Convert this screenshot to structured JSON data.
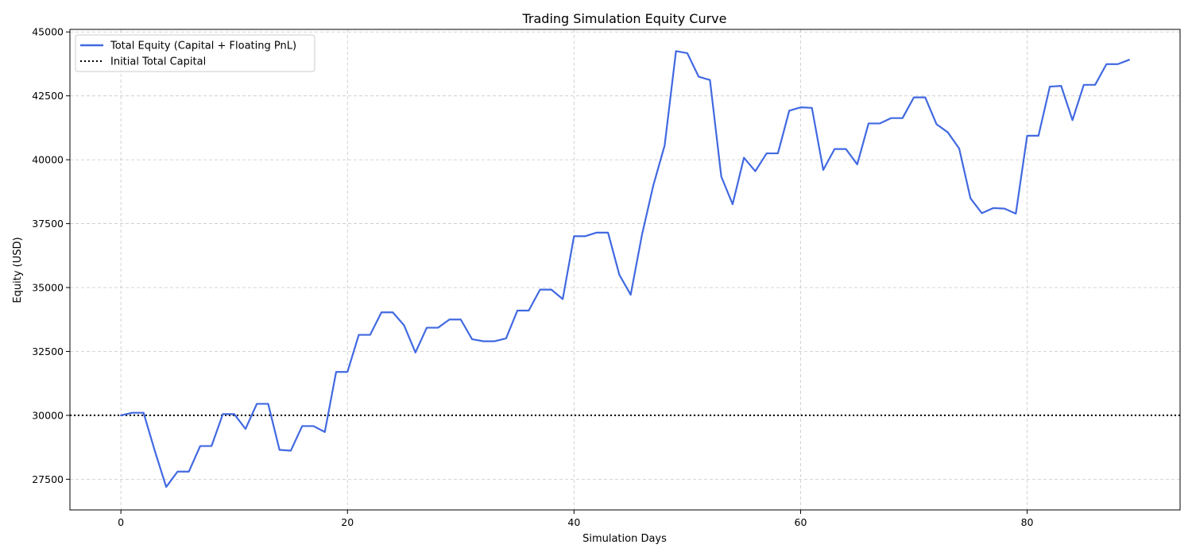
{
  "chart_data": {
    "type": "line",
    "title": "Trading Simulation Equity Curve",
    "xlabel": "Simulation Days",
    "ylabel": "Equity (USD)",
    "xlim": [
      -4.5,
      93.5
    ],
    "ylim": [
      26300,
      45100
    ],
    "xticks": [
      0,
      20,
      40,
      60,
      80
    ],
    "yticks": [
      27500,
      30000,
      32500,
      35000,
      37500,
      40000,
      42500,
      45000
    ],
    "grid": true,
    "legend_position": "top-left",
    "series": [
      {
        "name": "Total Equity (Capital + Floating PnL)",
        "color": "#4169E1",
        "style": "solid",
        "x": [
          0,
          1,
          2,
          3,
          4,
          5,
          6,
          7,
          8,
          9,
          10,
          11,
          12,
          13,
          14,
          15,
          16,
          17,
          18,
          19,
          20,
          21,
          22,
          23,
          24,
          25,
          26,
          27,
          28,
          29,
          30,
          31,
          32,
          33,
          34,
          35,
          36,
          37,
          38,
          39,
          40,
          41,
          42,
          43,
          44,
          45,
          46,
          47,
          48,
          49,
          50,
          51,
          52,
          53,
          54,
          55,
          56,
          57,
          58,
          59,
          60,
          61,
          62,
          63,
          64,
          65,
          66,
          67,
          68,
          69,
          70,
          71,
          72,
          73,
          74,
          75,
          76,
          77,
          78,
          79,
          80,
          81,
          82,
          83,
          84,
          85,
          86,
          87,
          88,
          89
        ],
        "values": [
          30000,
          30100,
          30100,
          28600,
          27200,
          27800,
          27800,
          28800,
          28800,
          30050,
          30050,
          29470,
          30450,
          30450,
          28650,
          28620,
          29580,
          29580,
          29350,
          31700,
          31700,
          33150,
          33150,
          34030,
          34030,
          33520,
          32460,
          33430,
          33430,
          33750,
          33750,
          32980,
          32900,
          32900,
          33010,
          34100,
          34100,
          34920,
          34920,
          34550,
          37010,
          37010,
          37150,
          37150,
          35500,
          34720,
          37070,
          39000,
          40560,
          44250,
          44170,
          43250,
          43120,
          39340,
          38260,
          40080,
          39550,
          40250,
          40250,
          41920,
          42050,
          42030,
          39600,
          40420,
          40420,
          39820,
          41420,
          41420,
          41630,
          41630,
          42440,
          42440,
          41390,
          41070,
          40440,
          38490,
          37910,
          38110,
          38090,
          37890,
          40940,
          40940,
          42860,
          42890,
          41550,
          42930,
          42930,
          43740,
          43740,
          43910
        ]
      },
      {
        "name": "Initial Total Capital",
        "color": "#000000",
        "style": "dotted",
        "hline": 30000
      }
    ]
  }
}
